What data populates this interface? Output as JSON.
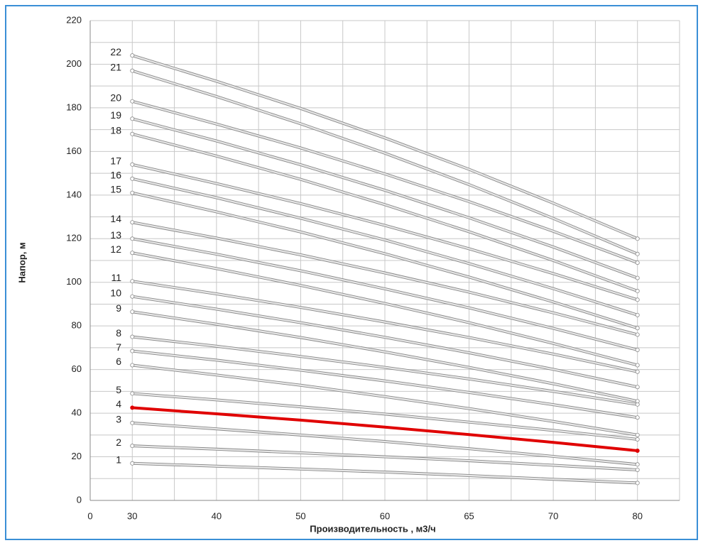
{
  "chart_data": {
    "type": "line",
    "x_label": "Производительность , м3/ч",
    "y_label": "Напор, м",
    "x_origin": "0",
    "categories": [
      "30",
      "40",
      "50",
      "60",
      "65",
      "70",
      "80"
    ],
    "ylim": [
      0,
      220
    ],
    "yticks": [
      0,
      20,
      40,
      60,
      80,
      100,
      120,
      140,
      160,
      180,
      200,
      220
    ],
    "grid": true,
    "series": [
      {
        "name": "1",
        "color": "#e6e6e6",
        "values": [
          17,
          15.7,
          14.4,
          13,
          11.4,
          9.7,
          8
        ]
      },
      {
        "name": "2",
        "color": "#e6e6e6",
        "values": [
          25,
          23.5,
          21.8,
          20,
          18.2,
          16.1,
          14
        ]
      },
      {
        "name": "3",
        "color": "#e6e6e6",
        "values": [
          35.5,
          32.8,
          30,
          27,
          23.7,
          20.2,
          16.5
        ]
      },
      {
        "name": "4",
        "color": "#e00000",
        "values": [
          42.5,
          39.7,
          36.8,
          33.6,
          30.2,
          26.6,
          22.8
        ]
      },
      {
        "name": "5",
        "color": "#e6e6e6",
        "values": [
          49,
          46.1,
          42.9,
          39.6,
          35.9,
          32.1,
          28
        ]
      },
      {
        "name": "6",
        "color": "#e6e6e6",
        "values": [
          62,
          57.5,
          52.8,
          47.6,
          42.1,
          36.2,
          30
        ]
      },
      {
        "name": "7",
        "color": "#e6e6e6",
        "values": [
          68.5,
          64.3,
          59.7,
          54.8,
          49.5,
          43.9,
          38
        ]
      },
      {
        "name": "8",
        "color": "#e6e6e6",
        "values": [
          75,
          70.7,
          66,
          61,
          55.7,
          50,
          44
        ]
      },
      {
        "name": "9",
        "color": "#e6e6e6",
        "values": [
          86.5,
          80.8,
          74.7,
          68.1,
          61,
          53.5,
          45.5
        ]
      },
      {
        "name": "10",
        "color": "#e6e6e6",
        "values": [
          93.5,
          87.7,
          81.5,
          74.8,
          67.7,
          60.1,
          52
        ]
      },
      {
        "name": "11",
        "color": "#e6e6e6",
        "values": [
          100.5,
          94.7,
          88.5,
          81.8,
          74.7,
          67.1,
          59
        ]
      },
      {
        "name": "12",
        "color": "#e6e6e6",
        "values": [
          113.5,
          106.3,
          98.6,
          90.3,
          81.5,
          72,
          62
        ]
      },
      {
        "name": "13",
        "color": "#e6e6e6",
        "values": [
          120,
          112.9,
          105.3,
          97,
          88.3,
          78.9,
          69
        ]
      },
      {
        "name": "14",
        "color": "#e6e6e6",
        "values": [
          127.5,
          120.3,
          112.6,
          104.3,
          95.5,
          86,
          76
        ]
      },
      {
        "name": "15",
        "color": "#e6e6e6",
        "values": [
          141,
          132.3,
          123.1,
          113.1,
          102.4,
          91,
          79
        ]
      },
      {
        "name": "16",
        "color": "#e6e6e6",
        "values": [
          147.5,
          138.8,
          129.4,
          119.4,
          108.6,
          97.1,
          85
        ]
      },
      {
        "name": "17",
        "color": "#e6e6e6",
        "values": [
          154,
          145.3,
          136.1,
          126.1,
          115.4,
          104,
          92
        ]
      },
      {
        "name": "18",
        "color": "#e6e6e6",
        "values": [
          168,
          157.9,
          147.2,
          135.6,
          123.2,
          110,
          96
        ]
      },
      {
        "name": "19",
        "color": "#e6e6e6",
        "values": [
          175,
          164.8,
          153.9,
          142.2,
          129.6,
          116.2,
          102
        ]
      },
      {
        "name": "20",
        "color": "#e6e6e6",
        "values": [
          183,
          172.6,
          161.6,
          149.7,
          137,
          123.4,
          109
        ]
      },
      {
        "name": "21",
        "color": "#e6e6e6",
        "values": [
          197,
          185.2,
          172.7,
          159.2,
          144.8,
          129.3,
          113
        ]
      },
      {
        "name": "22",
        "color": "#e6e6e6",
        "values": [
          204,
          192.2,
          179.7,
          166.2,
          151.8,
          136.3,
          120
        ]
      }
    ]
  }
}
